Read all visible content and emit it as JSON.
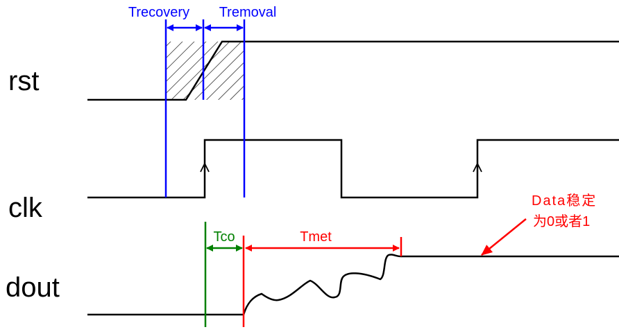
{
  "signals": {
    "rst": "rst",
    "clk": "clk",
    "dout": "dout"
  },
  "annotations": {
    "trecovery": "Trecovery",
    "tremoval": "Tremoval",
    "tco": "Tco",
    "tmet": "Tmet",
    "note_line1": "Data稳定",
    "note_line2": "为0或者1"
  },
  "colors": {
    "blue": "#0000ff",
    "green": "#008000",
    "red": "#ff0000",
    "signal": "#000000"
  }
}
